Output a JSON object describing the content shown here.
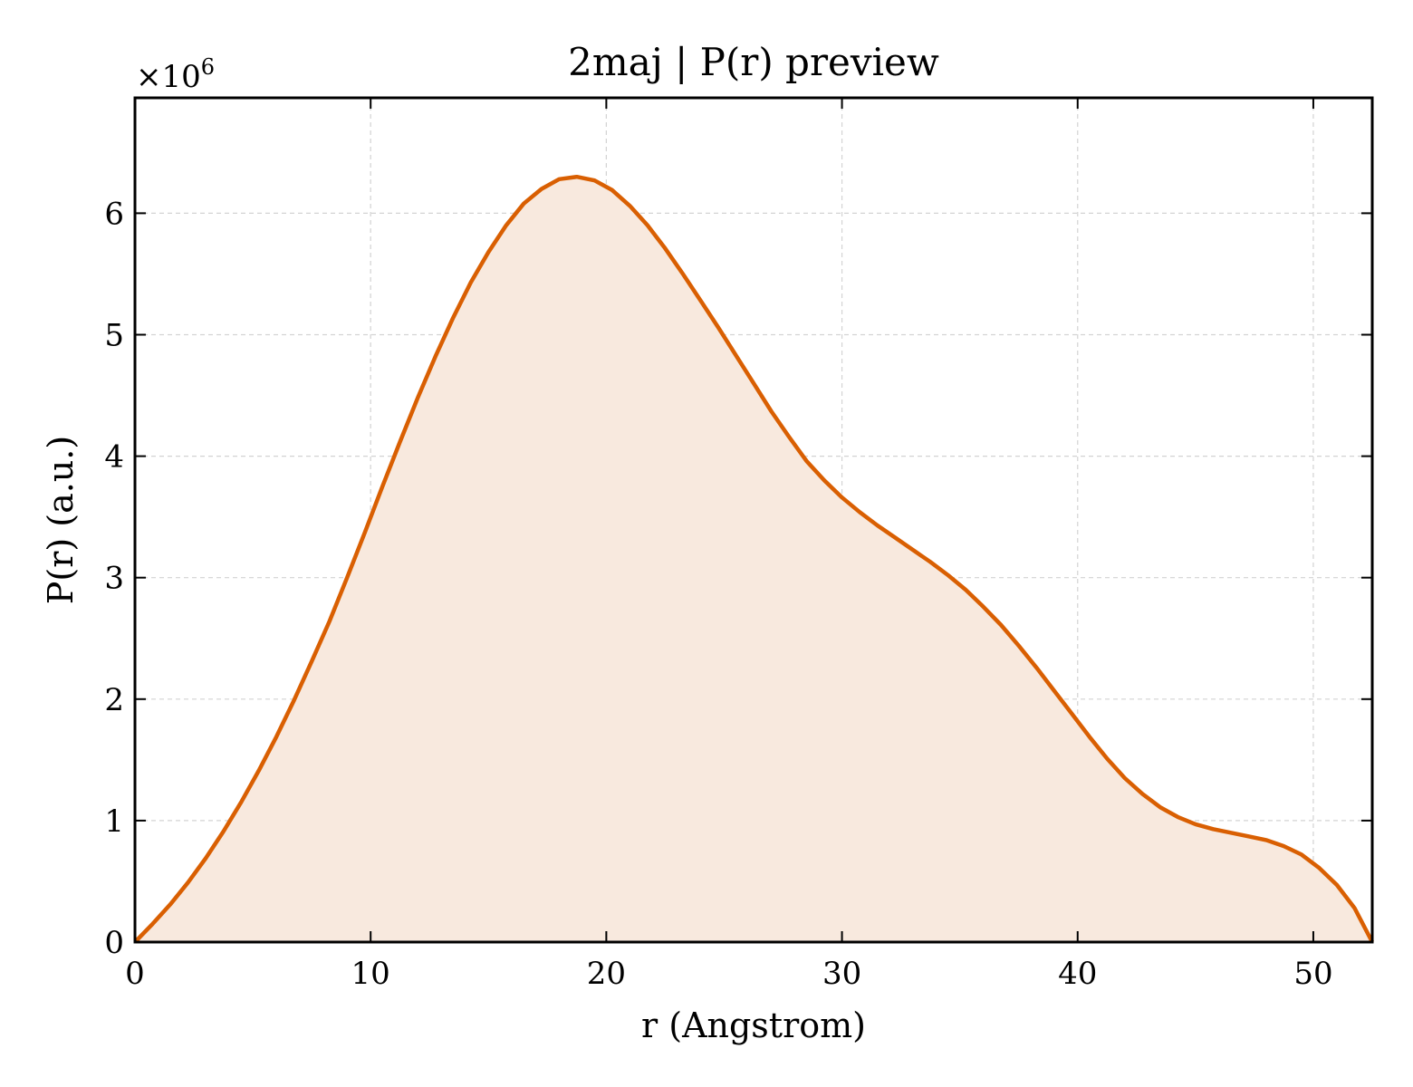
{
  "chart_data": {
    "type": "area",
    "title": "2maj | P(r) preview",
    "xlabel": "r (Angstrom)",
    "ylabel": "P(r) (a.u.)",
    "y_multiplier": {
      "base": "×10",
      "exponent": "6"
    },
    "xlim": [
      0,
      52.5
    ],
    "ylim": [
      0,
      6.95
    ],
    "x_ticks": [
      0,
      10,
      20,
      30,
      40,
      50
    ],
    "y_ticks": [
      0,
      1,
      2,
      3,
      4,
      5,
      6
    ],
    "grid": true,
    "line_color": "#d95f02",
    "fill_color": "#f8e9de",
    "series": [
      {
        "x": [
          0,
          0.75,
          1.5,
          2.25,
          3.0,
          3.75,
          4.5,
          5.25,
          6.0,
          6.75,
          7.5,
          8.25,
          9.0,
          9.75,
          10.5,
          11.25,
          12.0,
          12.75,
          13.5,
          14.25,
          15.0,
          15.75,
          16.5,
          17.25,
          18.0,
          18.75,
          19.5,
          20.25,
          21.0,
          21.75,
          22.5,
          23.25,
          24.0,
          24.75,
          25.5,
          26.25,
          27.0,
          27.75,
          28.5,
          29.25,
          30.0,
          30.75,
          31.5,
          32.25,
          33.0,
          33.75,
          34.5,
          35.25,
          36.0,
          36.75,
          37.5,
          38.25,
          39.0,
          39.75,
          40.5,
          41.25,
          42.0,
          42.75,
          43.5,
          44.25,
          45.0,
          45.75,
          46.5,
          47.25,
          48.0,
          48.75,
          49.5,
          50.25,
          51.0,
          51.75,
          52.5
        ],
        "y": [
          0.0,
          0.15,
          0.31,
          0.49,
          0.69,
          0.91,
          1.15,
          1.41,
          1.69,
          1.99,
          2.31,
          2.64,
          3.0,
          3.37,
          3.75,
          4.12,
          4.48,
          4.82,
          5.14,
          5.43,
          5.68,
          5.9,
          6.08,
          6.2,
          6.28,
          6.3,
          6.27,
          6.19,
          6.06,
          5.9,
          5.71,
          5.5,
          5.28,
          5.06,
          4.83,
          4.6,
          4.37,
          4.16,
          3.96,
          3.8,
          3.66,
          3.54,
          3.43,
          3.33,
          3.23,
          3.13,
          3.02,
          2.9,
          2.76,
          2.61,
          2.44,
          2.26,
          2.07,
          1.88,
          1.69,
          1.51,
          1.35,
          1.22,
          1.11,
          1.03,
          0.97,
          0.93,
          0.9,
          0.87,
          0.84,
          0.79,
          0.72,
          0.61,
          0.47,
          0.28,
          0.0
        ]
      }
    ]
  }
}
